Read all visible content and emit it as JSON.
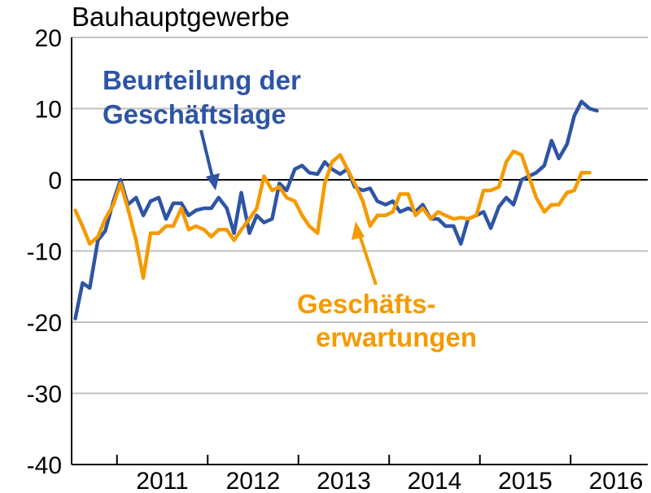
{
  "chart_data": {
    "type": "line",
    "title": "Bauhauptgewerbe",
    "xlabel": "",
    "ylabel": "",
    "ylim": [
      -40,
      20
    ],
    "yticks": [
      20,
      10,
      0,
      -10,
      -20,
      -30,
      -40
    ],
    "xlim": [
      2010.5,
      2016.85
    ],
    "year_labels": [
      "2011",
      "2012",
      "2013",
      "2014",
      "2015",
      "2016"
    ],
    "grid": "horizontal",
    "colors": {
      "blue": "#2e55a3",
      "orange": "#f59a00"
    },
    "annotations": [
      {
        "lines": [
          "Beurteilung der",
          "Geschäftslage"
        ],
        "series": "blue"
      },
      {
        "lines": [
          "Geschäfts-",
          "erwartungen"
        ],
        "series": "orange"
      }
    ],
    "series": [
      {
        "key": "blue",
        "x": [
          2010.54,
          2010.62,
          2010.7,
          2010.79,
          2010.87,
          2010.96,
          2011.04,
          2011.12,
          2011.21,
          2011.29,
          2011.37,
          2011.46,
          2011.54,
          2011.62,
          2011.71,
          2011.79,
          2011.87,
          2011.96,
          2012.04,
          2012.12,
          2012.21,
          2012.29,
          2012.37,
          2012.46,
          2012.54,
          2012.62,
          2012.71,
          2012.79,
          2012.87,
          2012.96,
          2013.04,
          2013.12,
          2013.21,
          2013.29,
          2013.37,
          2013.46,
          2013.54,
          2013.62,
          2013.71,
          2013.79,
          2013.87,
          2013.96,
          2014.04,
          2014.12,
          2014.21,
          2014.29,
          2014.37,
          2014.46,
          2014.54,
          2014.62,
          2014.71,
          2014.79,
          2014.87,
          2014.96,
          2015.04,
          2015.12,
          2015.21,
          2015.29,
          2015.37,
          2015.46,
          2015.54,
          2015.62,
          2015.71,
          2015.79,
          2015.87,
          2015.96,
          2016.04,
          2016.12,
          2016.21,
          2016.29,
          2016.37,
          2016.46,
          2016.54,
          2016.62,
          2016.71
        ],
        "values": [
          -19.5,
          -14.5,
          -15.2,
          -8.5,
          -7.2,
          -3.0,
          0.0,
          -3.5,
          -2.5,
          -5.0,
          -3.0,
          -2.5,
          -5.5,
          -3.3,
          -3.3,
          -5.0,
          -4.3,
          -4.0,
          -4.0,
          -2.5,
          -4.0,
          -7.5,
          -1.8,
          -7.5,
          -5.0,
          -6.0,
          -5.5,
          -0.5,
          -1.5,
          1.5,
          2.0,
          1.0,
          0.8,
          2.5,
          1.5,
          0.8,
          1.5,
          -1.0,
          -1.5,
          -1.2,
          -3.0,
          -3.5,
          -3.0,
          -4.5,
          -4.0,
          -4.5,
          -3.5,
          -5.5,
          -5.5,
          -6.5,
          -6.5,
          -9.0,
          -5.5,
          -5.0,
          -4.5,
          -6.8,
          -3.8,
          -2.5,
          -3.5,
          0.0,
          0.5,
          1.0,
          2.0,
          5.5,
          3.0,
          5.0,
          9.0,
          11.0,
          10.0,
          9.7,
          null,
          null,
          null,
          null,
          null
        ]
      },
      {
        "key": "orange",
        "x": [
          2010.54,
          2010.62,
          2010.7,
          2010.79,
          2010.87,
          2010.96,
          2011.04,
          2011.12,
          2011.21,
          2011.29,
          2011.37,
          2011.46,
          2011.54,
          2011.62,
          2011.71,
          2011.79,
          2011.87,
          2011.96,
          2012.04,
          2012.12,
          2012.21,
          2012.29,
          2012.37,
          2012.46,
          2012.54,
          2012.62,
          2012.71,
          2012.79,
          2012.87,
          2012.96,
          2013.04,
          2013.12,
          2013.21,
          2013.29,
          2013.37,
          2013.46,
          2013.54,
          2013.62,
          2013.71,
          2013.79,
          2013.87,
          2013.96,
          2014.04,
          2014.12,
          2014.21,
          2014.29,
          2014.37,
          2014.46,
          2014.54,
          2014.62,
          2014.71,
          2014.79,
          2014.87,
          2014.96,
          2015.04,
          2015.12,
          2015.21,
          2015.29,
          2015.37,
          2015.46,
          2015.54,
          2015.62,
          2015.71,
          2015.79,
          2015.87,
          2015.96,
          2016.04,
          2016.12,
          2016.21,
          2016.29,
          2016.37,
          2016.46,
          2016.54,
          2016.62,
          2016.71
        ],
        "values": [
          -4.3,
          -6.5,
          -9.0,
          -8.0,
          -5.5,
          -3.5,
          -0.5,
          -4.0,
          -8.5,
          -13.8,
          -7.5,
          -7.5,
          -6.5,
          -6.5,
          -4.0,
          -7.0,
          -6.5,
          -7.0,
          -8.0,
          -7.0,
          -7.0,
          -8.5,
          -7.0,
          -5.5,
          -4.0,
          0.5,
          -1.5,
          -1.0,
          -2.5,
          -3.0,
          -5.0,
          -6.5,
          -7.5,
          -0.5,
          2.5,
          3.5,
          1.5,
          -0.5,
          -3.0,
          -6.5,
          -5.0,
          -5.0,
          -4.5,
          -2.0,
          -2.0,
          -5.0,
          -4.0,
          -5.5,
          -4.5,
          -5.0,
          -5.5,
          -5.3,
          -5.5,
          -5.0,
          -1.5,
          -1.5,
          -1.0,
          2.5,
          4.0,
          3.5,
          0.5,
          -2.5,
          -4.5,
          -3.5,
          -3.5,
          -1.8,
          -1.5,
          1.0,
          1.0,
          null,
          null,
          null,
          null,
          null,
          null
        ]
      }
    ]
  }
}
